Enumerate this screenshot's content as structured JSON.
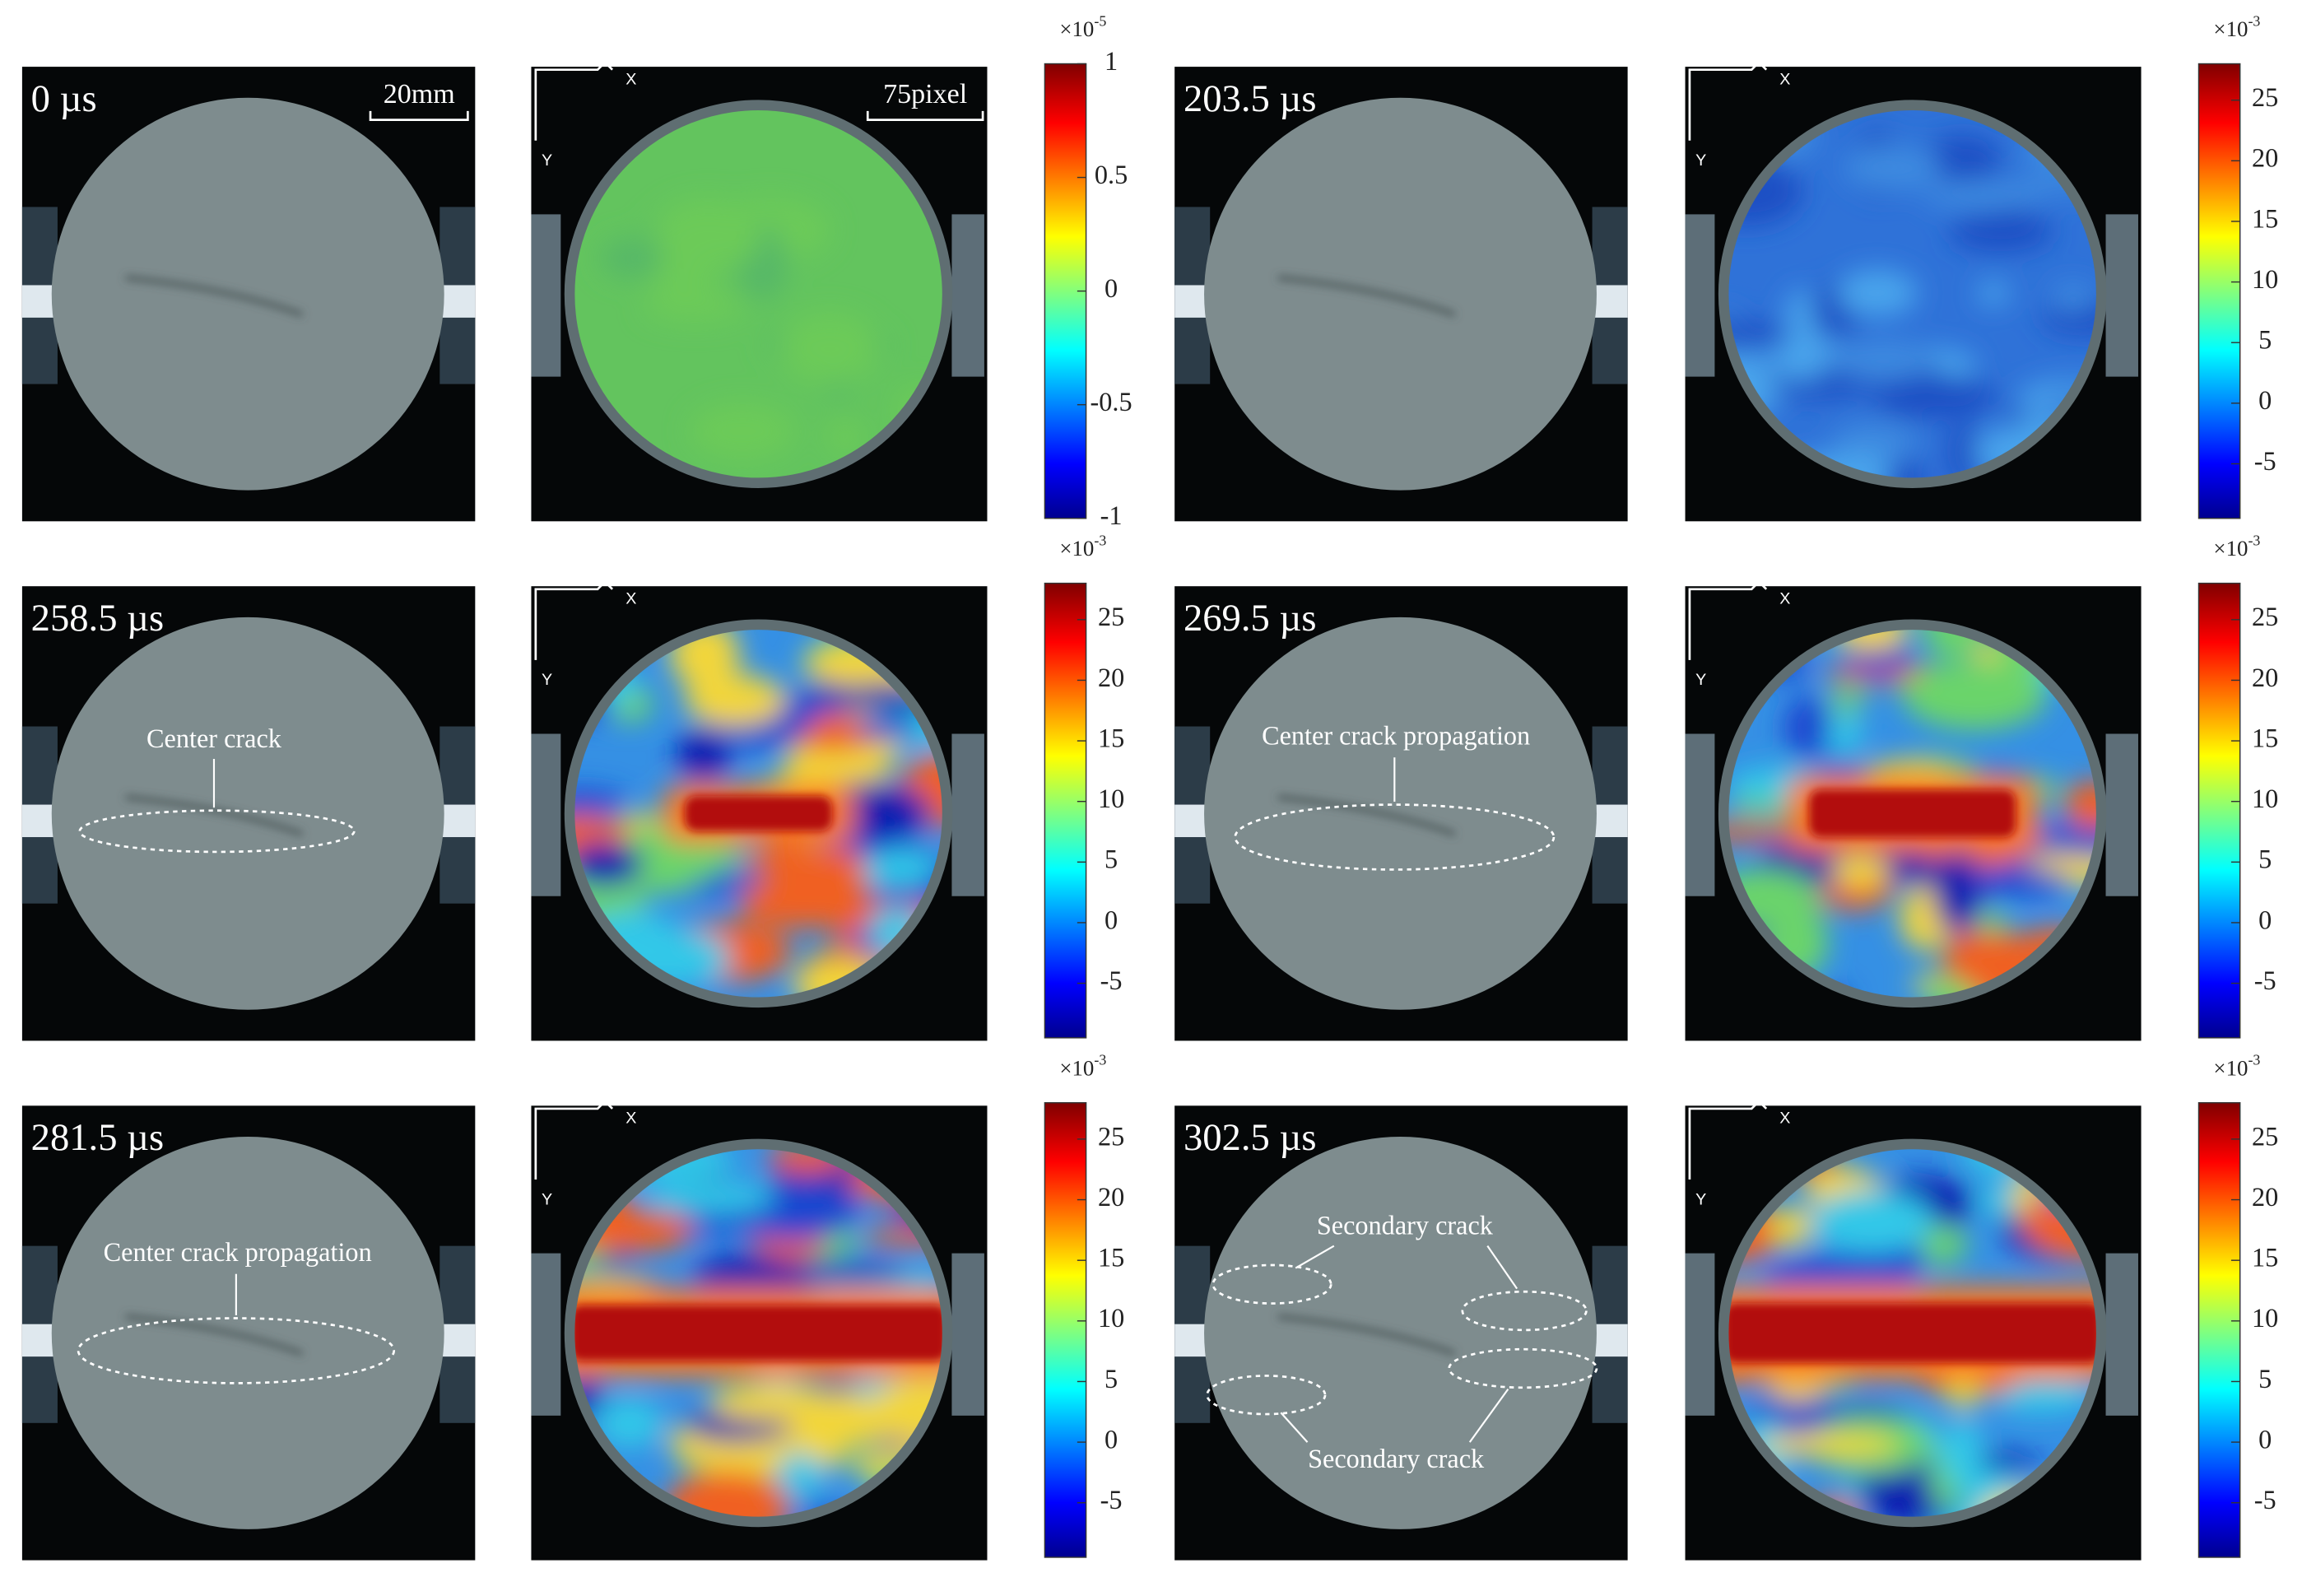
{
  "figure": {
    "scale_photo": "20mm",
    "scale_dic": "75pixel",
    "axis_x": "X",
    "axis_y": "Y",
    "panels": [
      {
        "time": "0 µs",
        "annotations": [],
        "colorbar": {
          "base": "×10",
          "exp": "-5",
          "clim": [
            -1,
            1
          ],
          "ticks": [
            1,
            0.5,
            0,
            -0.5,
            -1
          ]
        }
      },
      {
        "time": "203.5 µs",
        "annotations": [],
        "colorbar": {
          "base": "×10",
          "exp": "-3",
          "clim": [
            -9.5,
            28
          ],
          "ticks": [
            25,
            20,
            15,
            10,
            5,
            0,
            -5
          ]
        }
      },
      {
        "time": "258.5 µs",
        "annotations": [
          "Center crack"
        ],
        "colorbar": {
          "base": "×10",
          "exp": "-3",
          "clim": [
            -9.5,
            28
          ],
          "ticks": [
            25,
            20,
            15,
            10,
            5,
            0,
            -5
          ]
        }
      },
      {
        "time": "269.5 µs",
        "annotations": [
          "Center crack propagation"
        ],
        "colorbar": {
          "base": "×10",
          "exp": "-3",
          "clim": [
            -9.5,
            28
          ],
          "ticks": [
            25,
            20,
            15,
            10,
            5,
            0,
            -5
          ]
        }
      },
      {
        "time": "281.5 µs",
        "annotations": [
          "Center crack propagation"
        ],
        "colorbar": {
          "base": "×10",
          "exp": "-3",
          "clim": [
            -9.5,
            28
          ],
          "ticks": [
            25,
            20,
            15,
            10,
            5,
            0,
            -5
          ]
        }
      },
      {
        "time": "302.5 µs",
        "annotations": [
          "Secondary crack",
          "Secondary crack"
        ],
        "colorbar": {
          "base": "×10",
          "exp": "-3",
          "clim": [
            -9.5,
            28
          ],
          "ticks": [
            25,
            20,
            15,
            10,
            5,
            0,
            -5
          ]
        }
      }
    ]
  }
}
